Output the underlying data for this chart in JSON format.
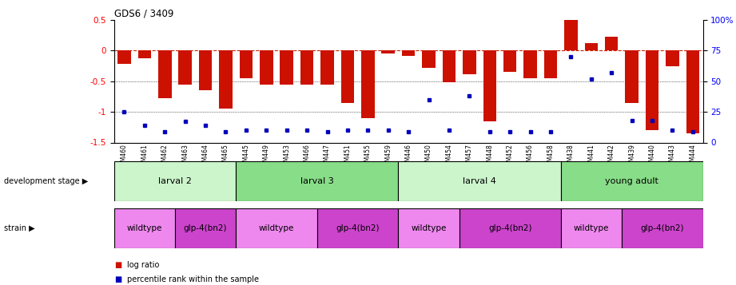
{
  "title": "GDS6 / 3409",
  "samples": [
    "GSM460",
    "GSM461",
    "GSM462",
    "GSM463",
    "GSM464",
    "GSM465",
    "GSM445",
    "GSM449",
    "GSM453",
    "GSM466",
    "GSM447",
    "GSM451",
    "GSM455",
    "GSM459",
    "GSM446",
    "GSM450",
    "GSM454",
    "GSM457",
    "GSM448",
    "GSM452",
    "GSM456",
    "GSM458",
    "GSM438",
    "GSM441",
    "GSM442",
    "GSM439",
    "GSM440",
    "GSM443",
    "GSM444"
  ],
  "log_ratio": [
    -0.22,
    -0.12,
    -0.78,
    -0.55,
    -0.65,
    -0.95,
    -0.45,
    -0.55,
    -0.55,
    -0.55,
    -0.55,
    -0.85,
    -1.1,
    -0.05,
    -0.08,
    -0.28,
    -0.52,
    -0.38,
    -1.15,
    -0.35,
    -0.45,
    -0.45,
    0.52,
    0.12,
    0.22,
    -0.85,
    -1.3,
    -0.25,
    -1.35
  ],
  "percentile": [
    25,
    14,
    9,
    17,
    14,
    9,
    10,
    10,
    10,
    10,
    9,
    10,
    10,
    10,
    9,
    35,
    10,
    38,
    9,
    9,
    9,
    9,
    70,
    52,
    57,
    18,
    18,
    10,
    9
  ],
  "development_stages": [
    {
      "label": "larval 2",
      "start": 0,
      "end": 6,
      "color": "#ccf5cc"
    },
    {
      "label": "larval 3",
      "start": 6,
      "end": 14,
      "color": "#88dd88"
    },
    {
      "label": "larval 4",
      "start": 14,
      "end": 22,
      "color": "#ccf5cc"
    },
    {
      "label": "young adult",
      "start": 22,
      "end": 29,
      "color": "#88dd88"
    }
  ],
  "strains": [
    {
      "label": "wildtype",
      "start": 0,
      "end": 3,
      "color": "#ee88ee"
    },
    {
      "label": "glp-4(bn2)",
      "start": 3,
      "end": 6,
      "color": "#cc44cc"
    },
    {
      "label": "wildtype",
      "start": 6,
      "end": 10,
      "color": "#ee88ee"
    },
    {
      "label": "glp-4(bn2)",
      "start": 10,
      "end": 14,
      "color": "#cc44cc"
    },
    {
      "label": "wildtype",
      "start": 14,
      "end": 17,
      "color": "#ee88ee"
    },
    {
      "label": "glp-4(bn2)",
      "start": 17,
      "end": 22,
      "color": "#cc44cc"
    },
    {
      "label": "wildtype",
      "start": 22,
      "end": 25,
      "color": "#ee88ee"
    },
    {
      "label": "glp-4(bn2)",
      "start": 25,
      "end": 29,
      "color": "#cc44cc"
    }
  ],
  "bar_color": "#cc1100",
  "dot_color": "#0000bb",
  "ylim": [
    -1.5,
    0.5
  ],
  "y2lim": [
    0,
    100
  ],
  "yticks": [
    0.5,
    0.0,
    -0.5,
    -1.0,
    -1.5
  ],
  "ytick_labels": [
    "0.5",
    "0",
    "-0.5",
    "-1",
    "-1.5"
  ],
  "y2ticks": [
    100,
    75,
    50,
    25,
    0
  ],
  "y2ticklabels": [
    "100%",
    "75",
    "50",
    "25",
    "0"
  ]
}
